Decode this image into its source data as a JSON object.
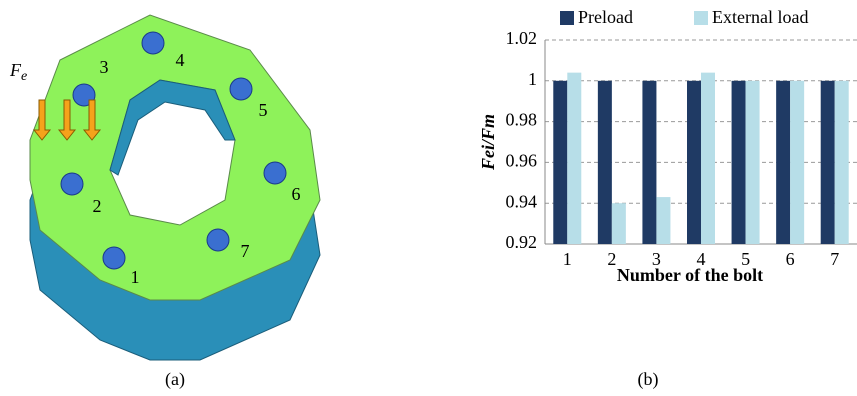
{
  "panel_a": {
    "force_label": "F",
    "force_subscript": "e",
    "bolt_labels": [
      "1",
      "2",
      "3",
      "4",
      "5",
      "6",
      "7"
    ],
    "caption": "(a)"
  },
  "chart_data": {
    "type": "bar",
    "caption": "(b)",
    "x_label": "Number of the bolt",
    "y_label": "Fei/Fm",
    "categories": [
      "1",
      "2",
      "3",
      "4",
      "5",
      "6",
      "7"
    ],
    "series": [
      {
        "name": "Preload",
        "color": "#1f3a64",
        "values": [
          1,
          1,
          1,
          1,
          1,
          1,
          1
        ]
      },
      {
        "name": "External load",
        "color": "#b7dee8",
        "values": [
          1.004,
          0.94,
          0.943,
          1.004,
          1.0,
          1.0,
          1.0
        ]
      }
    ],
    "ylim": [
      0.92,
      1.02
    ],
    "yticks": [
      0.92,
      0.94,
      0.96,
      0.98,
      1,
      1.02
    ],
    "grid": true,
    "legend": "top"
  }
}
